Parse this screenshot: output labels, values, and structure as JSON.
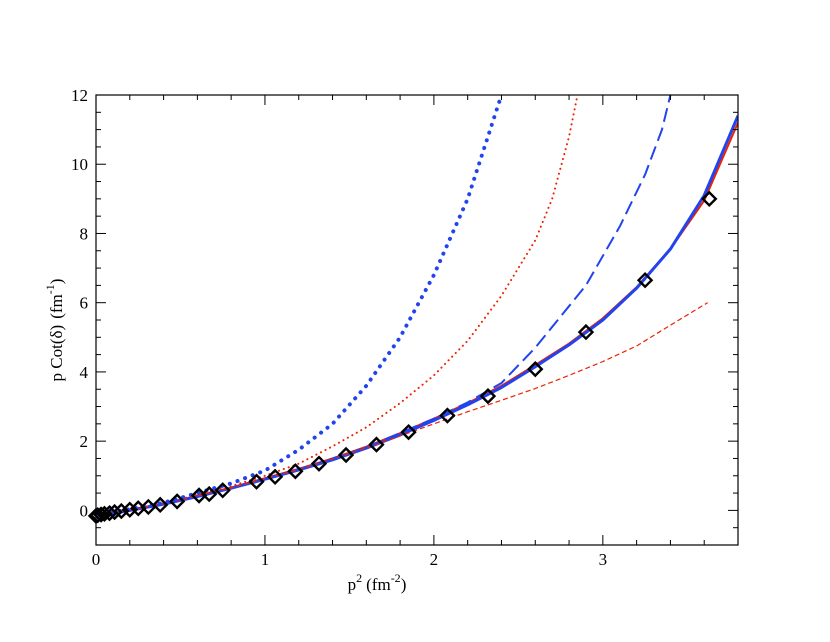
{
  "chart_data": {
    "type": "line",
    "title": "",
    "xlabel": {
      "base": "p",
      "sup": "2",
      "unit": "(fm",
      "unit_sup": "-2",
      "unit_close": ")"
    },
    "ylabel": {
      "base": "p Cot(δ)",
      "unit": "(fm",
      "unit_sup": "-1",
      "unit_close": ")"
    },
    "xlim": [
      0,
      3.8
    ],
    "ylim": [
      -1,
      12
    ],
    "x_ticks": [
      {
        "value": 0,
        "label": "0"
      },
      {
        "value": 1,
        "label": "1"
      },
      {
        "value": 2,
        "label": "2"
      },
      {
        "value": 3,
        "label": "3"
      }
    ],
    "y_ticks": [
      {
        "value": 0,
        "label": "0"
      },
      {
        "value": 2,
        "label": "2"
      },
      {
        "value": 4,
        "label": "4"
      },
      {
        "value": 6,
        "label": "6"
      },
      {
        "value": 8,
        "label": "8"
      },
      {
        "value": 10,
        "label": "10"
      },
      {
        "value": 12,
        "label": "12"
      }
    ],
    "x_minor_step": 0.2,
    "y_minor_step": 0.5,
    "grid": false,
    "legend": "none",
    "series": [
      {
        "style": "diamond-markers",
        "color": "#000000",
        "points": [
          [
            0.0,
            -0.16
          ],
          [
            0.01,
            -0.14
          ],
          [
            0.03,
            -0.12
          ],
          [
            0.05,
            -0.1
          ],
          [
            0.08,
            -0.08
          ],
          [
            0.11,
            -0.05
          ],
          [
            0.15,
            -0.02
          ],
          [
            0.2,
            0.02
          ],
          [
            0.25,
            0.06
          ],
          [
            0.31,
            0.1
          ],
          [
            0.38,
            0.16
          ],
          [
            0.48,
            0.26
          ],
          [
            0.61,
            0.43
          ],
          [
            0.67,
            0.47
          ],
          [
            0.75,
            0.58
          ],
          [
            0.95,
            0.83
          ],
          [
            1.06,
            0.97
          ],
          [
            1.18,
            1.13
          ],
          [
            1.32,
            1.35
          ],
          [
            1.48,
            1.6
          ],
          [
            1.66,
            1.9
          ],
          [
            1.85,
            2.26
          ],
          [
            2.08,
            2.74
          ],
          [
            2.32,
            3.3
          ],
          [
            2.6,
            4.08
          ],
          [
            2.9,
            5.15
          ],
          [
            3.25,
            6.65
          ],
          [
            3.63,
            9.0
          ]
        ]
      },
      {
        "style": "solid",
        "color": "#ee2200",
        "width": 2,
        "points": [
          [
            0.0,
            -0.15
          ],
          [
            0.2,
            0.02
          ],
          [
            0.4,
            0.2
          ],
          [
            0.6,
            0.42
          ],
          [
            0.8,
            0.66
          ],
          [
            1.0,
            0.93
          ],
          [
            1.2,
            1.2
          ],
          [
            1.4,
            1.5
          ],
          [
            1.6,
            1.84
          ],
          [
            1.8,
            2.23
          ],
          [
            2.0,
            2.65
          ],
          [
            2.2,
            3.1
          ],
          [
            2.4,
            3.6
          ],
          [
            2.6,
            4.2
          ],
          [
            2.8,
            4.82
          ],
          [
            3.0,
            5.55
          ],
          [
            3.2,
            6.45
          ],
          [
            3.4,
            7.55
          ],
          [
            3.6,
            8.95
          ],
          [
            3.8,
            11.2
          ]
        ]
      },
      {
        "style": "solid",
        "color": "#2244ee",
        "width": 3,
        "points": [
          [
            0.0,
            -0.17
          ],
          [
            0.2,
            0.0
          ],
          [
            0.4,
            0.18
          ],
          [
            0.6,
            0.4
          ],
          [
            0.8,
            0.64
          ],
          [
            1.0,
            0.9
          ],
          [
            1.2,
            1.17
          ],
          [
            1.4,
            1.46
          ],
          [
            1.6,
            1.8
          ],
          [
            1.8,
            2.18
          ],
          [
            2.0,
            2.6
          ],
          [
            2.2,
            3.05
          ],
          [
            2.4,
            3.55
          ],
          [
            2.6,
            4.15
          ],
          [
            2.8,
            4.78
          ],
          [
            3.0,
            5.5
          ],
          [
            3.2,
            6.42
          ],
          [
            3.4,
            7.55
          ],
          [
            3.6,
            9.1
          ],
          [
            3.8,
            11.4
          ]
        ]
      },
      {
        "style": "dashed",
        "color": "#2244ee",
        "width": 2,
        "points": [
          [
            0.0,
            -0.15
          ],
          [
            0.4,
            0.19
          ],
          [
            0.8,
            0.65
          ],
          [
            1.2,
            1.18
          ],
          [
            1.6,
            1.82
          ],
          [
            2.0,
            2.65
          ],
          [
            2.2,
            3.12
          ],
          [
            2.4,
            3.68
          ],
          [
            2.6,
            4.7
          ],
          [
            2.9,
            6.5
          ],
          [
            3.1,
            8.2
          ],
          [
            3.25,
            9.7
          ],
          [
            3.35,
            11.0
          ],
          [
            3.4,
            12.0
          ]
        ]
      },
      {
        "style": "short-dashed",
        "color": "#ee2200",
        "width": 1.2,
        "points": [
          [
            0.0,
            -0.15
          ],
          [
            0.4,
            0.19
          ],
          [
            0.8,
            0.65
          ],
          [
            1.2,
            1.18
          ],
          [
            1.6,
            1.8
          ],
          [
            2.0,
            2.5
          ],
          [
            2.2,
            2.85
          ],
          [
            2.4,
            3.18
          ],
          [
            2.6,
            3.52
          ],
          [
            2.8,
            3.9
          ],
          [
            3.0,
            4.3
          ],
          [
            3.2,
            4.75
          ],
          [
            3.4,
            5.35
          ],
          [
            3.62,
            6.0
          ]
        ]
      },
      {
        "style": "dotted",
        "color": "#ee2200",
        "width": 2,
        "points": [
          [
            0.0,
            -0.15
          ],
          [
            0.4,
            0.2
          ],
          [
            0.8,
            0.7
          ],
          [
            1.0,
            1.0
          ],
          [
            1.2,
            1.35
          ],
          [
            1.4,
            1.85
          ],
          [
            1.6,
            2.4
          ],
          [
            1.8,
            3.1
          ],
          [
            2.0,
            3.9
          ],
          [
            2.2,
            4.9
          ],
          [
            2.4,
            6.2
          ],
          [
            2.6,
            7.8
          ],
          [
            2.7,
            9.0
          ],
          [
            2.8,
            10.8
          ],
          [
            2.85,
            12.0
          ]
        ]
      },
      {
        "style": "dotted",
        "color": "#2244ee",
        "width": 4,
        "points": [
          [
            0.0,
            -0.15
          ],
          [
            0.4,
            0.22
          ],
          [
            0.8,
            0.78
          ],
          [
            1.0,
            1.15
          ],
          [
            1.2,
            1.75
          ],
          [
            1.4,
            2.5
          ],
          [
            1.6,
            3.6
          ],
          [
            1.8,
            5.0
          ],
          [
            2.0,
            6.8
          ],
          [
            2.2,
            9.0
          ],
          [
            2.3,
            10.5
          ],
          [
            2.4,
            12.0
          ]
        ]
      }
    ]
  }
}
